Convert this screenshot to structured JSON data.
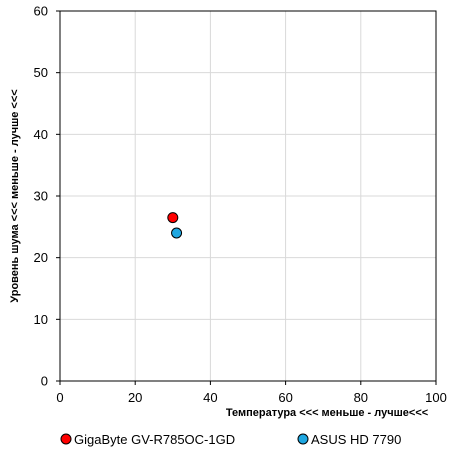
{
  "chart_data": {
    "type": "scatter",
    "xlabel": "Температура  <<<  меньше - лучше<<<",
    "ylabel": "Уровень шума <<< меньше - лучше <<<",
    "xlim": [
      0,
      100
    ],
    "ylim": [
      0,
      60
    ],
    "x_ticks": [
      "0",
      "20",
      "40",
      "60",
      "80",
      "100"
    ],
    "y_ticks": [
      "0",
      "10",
      "20",
      "30",
      "40",
      "50",
      "60"
    ],
    "grid": true,
    "legend_position": "bottom",
    "series": [
      {
        "name": "GigaByte GV-R785OC-1GD",
        "color": "#ff0000",
        "x": [
          30
        ],
        "y": [
          26.5
        ]
      },
      {
        "name": "ASUS HD 7790",
        "color": "#1ea7e1",
        "x": [
          31
        ],
        "y": [
          24
        ]
      }
    ]
  }
}
